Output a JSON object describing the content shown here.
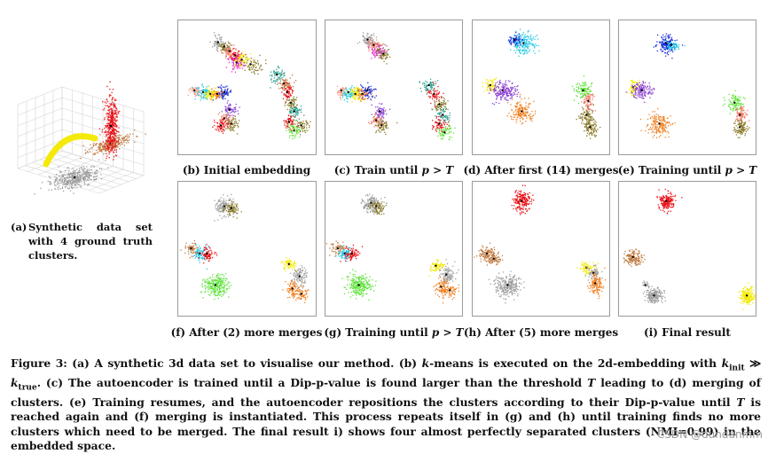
{
  "figure": {
    "panel_a_label": "(a) Synthetic data set with 4 ground truth clusters.",
    "panel_a_tag": "(a)",
    "panel_a_body": "Synthetic data set with 4 ground truth clusters.",
    "panels": [
      {
        "tag": "b",
        "label_pre": "(b) Initial embedding",
        "label_var": "",
        "label_post": ""
      },
      {
        "tag": "c",
        "label_pre": "(c) Train until ",
        "label_var": "p > T",
        "label_post": ""
      },
      {
        "tag": "d",
        "label_pre": "(d) After first (14) merges",
        "label_var": "",
        "label_post": ""
      },
      {
        "tag": "e",
        "label_pre": "(e) Training until ",
        "label_var": "p > T",
        "label_post": ""
      },
      {
        "tag": "f",
        "label_pre": "(f) After (2) more merges",
        "label_var": "",
        "label_post": ""
      },
      {
        "tag": "g",
        "label_pre": "(g) Training until ",
        "label_var": "p > T",
        "label_post": ""
      },
      {
        "tag": "h",
        "label_pre": "(h) After (5) more merges",
        "label_var": "",
        "label_post": ""
      },
      {
        "tag": "i",
        "label_pre": "(i) Final result",
        "label_var": "",
        "label_post": ""
      }
    ],
    "caption": {
      "c1": "Figure 3: (a) A synthetic 3d data set to visualise our method. (b) ",
      "c2": "k",
      "c3": "-means is executed on the 2d-embedding with ",
      "c4": "k",
      "c5": "init",
      "c6": " ≫ ",
      "c7": "k",
      "c8": "true",
      "c9": ". (c) The autoencoder is trained until a Dip-p-value is found larger than the threshold ",
      "c10": "T",
      "c11": " leading to (d) merging of clusters. (e) Training resumes, and the autoencoder repositions the clusters according to their Dip-p-value until ",
      "c12": "T",
      "c13": " is reached again and (f) merging is instantiated. This process repeats itself in (g) and (h) until training finds no more clusters which need to be merged. The final result i) shows four almost perfectly separated clusters (NMI=0.99) in the embedded space."
    },
    "watermark": "CSDN @dundunmm",
    "colors": {
      "red": "#e8141a",
      "yellow": "#f4ea0a",
      "orange": "#f07f1f",
      "gray": "#9e9e9e",
      "olive": "#8a7a2a",
      "green": "#5fe23a",
      "blue": "#1a2fd8",
      "cyan": "#28c9e6",
      "magenta": "#e62ad6",
      "purple": "#8a3fd0",
      "pink": "#f4a08a",
      "teal": "#2aa090",
      "salmon": "#f07a6a",
      "brown": "#c07a40"
    }
  }
}
